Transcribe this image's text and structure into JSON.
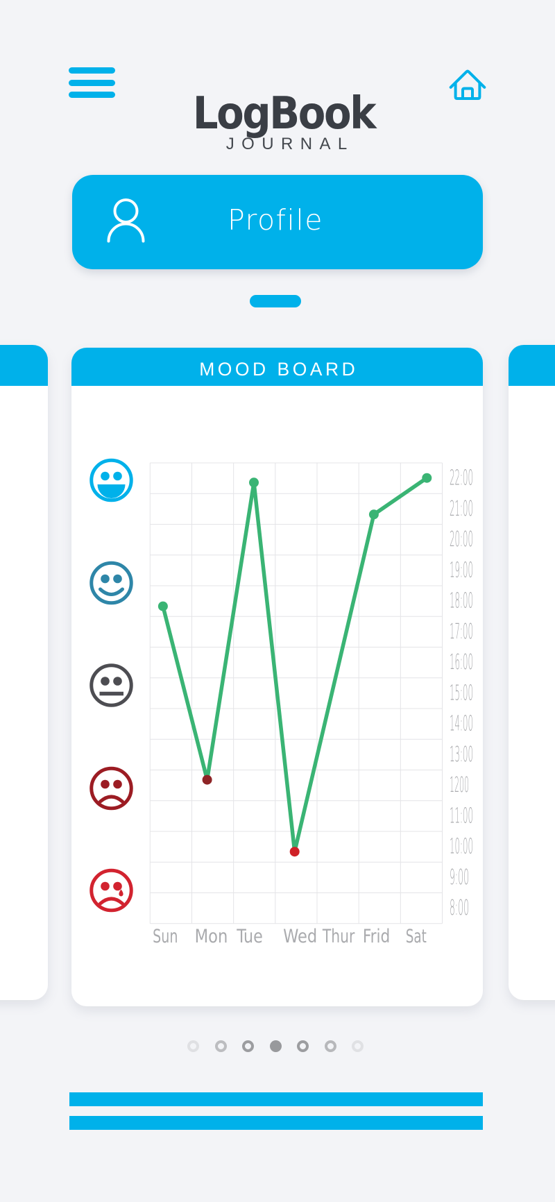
{
  "app": {
    "title": "LogBook",
    "subtitle": "JOURNAL"
  },
  "theme": {
    "primary_blue": "#00b1ea",
    "background": "#f3f4f7",
    "card_white": "#ffffff",
    "title_dark": "#3a3e45",
    "subtitle_dark": "#44484e",
    "axis_label_gray": "#aaabae",
    "grid_gray": "#e4e4e7"
  },
  "toolbar": {
    "menu_icon": "hamburger-menu",
    "home_icon": "home-outline"
  },
  "profile": {
    "label": "Profile",
    "icon": "person-outline"
  },
  "card": {
    "title": "MOOD BOARD"
  },
  "chart_data": {
    "type": "line",
    "title": "MOOD BOARD",
    "x_categories": [
      "Sun",
      "Mon",
      "Tue",
      "Wed",
      "Thur",
      "Frid",
      "Sat"
    ],
    "y_axis_labels": [
      "22:00",
      "21:00",
      "20:00",
      "19:00",
      "18:00",
      "17:00",
      "16:00",
      "15:00",
      "14:00",
      "13:00",
      "1200",
      "11:00",
      "10:00",
      "9:00",
      "8:00"
    ],
    "y_axis_side": "right",
    "y_top_hours": 22.5,
    "y_bottom_hours": 7.5,
    "grid": true,
    "line_color": "#3ab474",
    "line_width": 5.5,
    "dot_radius": 7,
    "points": [
      {
        "day": "Sun",
        "hour": 17.83,
        "dot_color": "#3ab474"
      },
      {
        "day": "Mon",
        "hour": 12.18,
        "dot_color": "#8e2426"
      },
      {
        "day": "Tue",
        "hour": 21.86,
        "dot_color": "#3ab474"
      },
      {
        "day": "Wed",
        "hour": 9.84,
        "dot_color": "#cf2127"
      },
      {
        "day": "Frid",
        "hour": 20.82,
        "dot_color": "#3ab474"
      },
      {
        "day": "Sat",
        "hour": 22.01,
        "dot_color": "#3ab474"
      }
    ],
    "mood_axis": [
      {
        "mood": "laughing",
        "color": "#00b1ea"
      },
      {
        "mood": "smiling",
        "color": "#2e86a8"
      },
      {
        "mood": "neutral",
        "color": "#4d4d52"
      },
      {
        "mood": "sad",
        "color": "#9c1c23"
      },
      {
        "mood": "crying",
        "color": "#d2232f"
      }
    ]
  },
  "pagination": {
    "active_index": 3,
    "dots": [
      {
        "filled": false,
        "color": "#dfe0e3"
      },
      {
        "filled": false,
        "color": "#bcbdc0"
      },
      {
        "filled": false,
        "color": "#9c9da0"
      },
      {
        "filled": true,
        "color": "#98999c"
      },
      {
        "filled": false,
        "color": "#9c9da0"
      },
      {
        "filled": false,
        "color": "#b7b8bb"
      },
      {
        "filled": false,
        "color": "#e0e1e4"
      }
    ]
  },
  "footer": {
    "bars": [
      {
        "color": "#00b1ea"
      },
      {
        "color": "#00b1ea"
      }
    ]
  }
}
